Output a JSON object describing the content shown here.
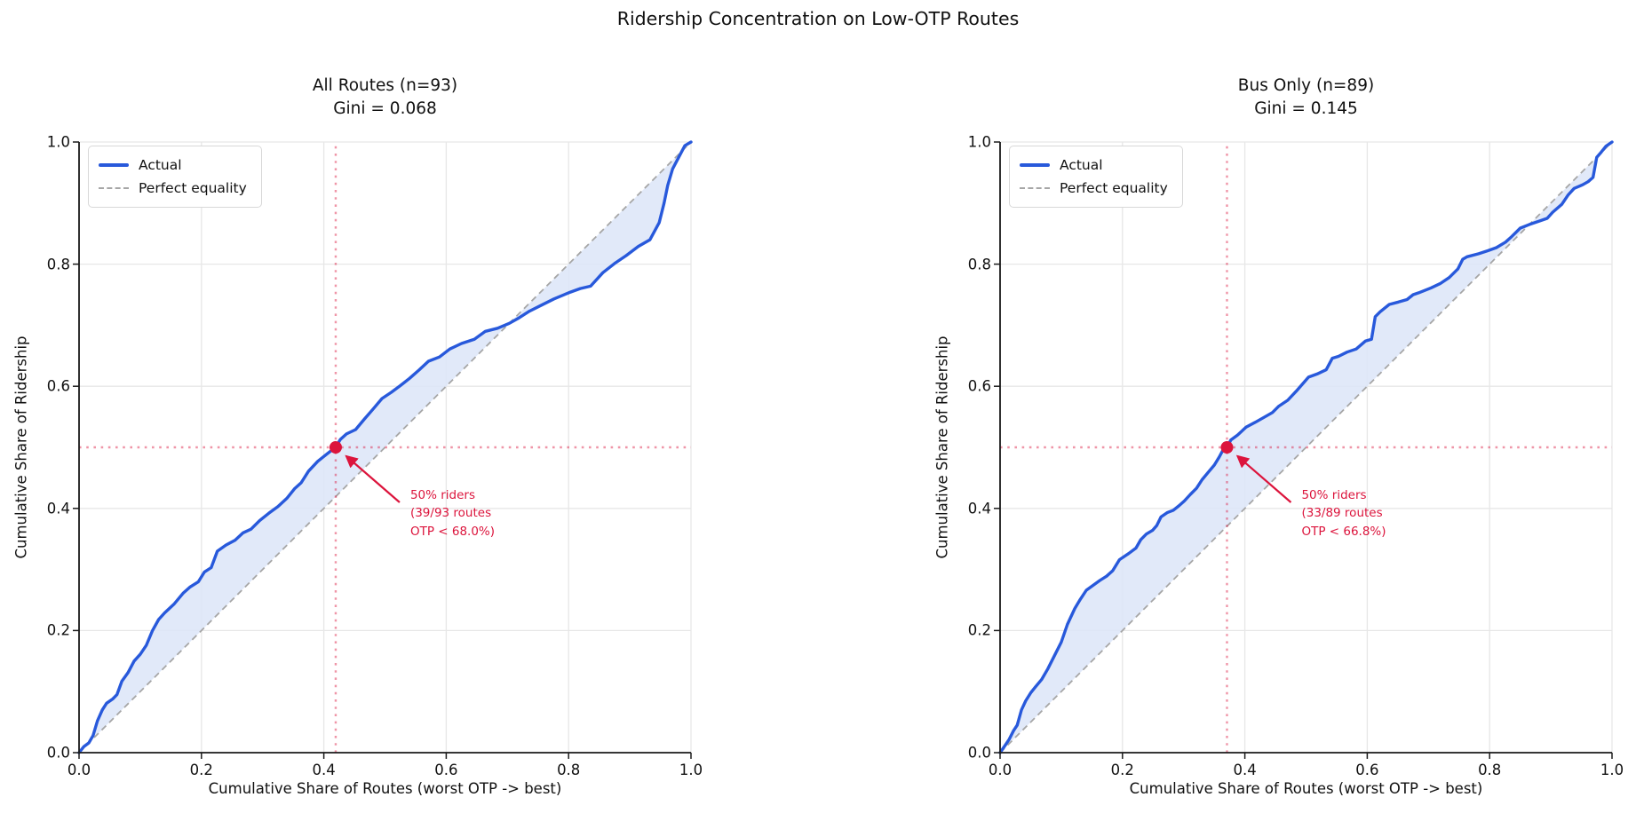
{
  "figure": {
    "title": "Ridership Concentration on Low-OTP Routes"
  },
  "colors": {
    "actual_line": "#2859DB",
    "lorenz_fill": "#DCE5F8",
    "equality_line": "#A6A6A6",
    "accent_crimson": "#DC143C",
    "grid": "#E7E7E7",
    "spine": "#1a1a1a"
  },
  "chart_data": [
    {
      "type": "line",
      "title": "All Routes (n=93)",
      "subtitle": "Gini = 0.068",
      "n_routes": 93,
      "gini": 0.068,
      "xlabel": "Cumulative Share of Routes (worst OTP -> best)",
      "ylabel": "Cumulative Share of Ridership",
      "xlim": [
        0,
        1
      ],
      "ylim": [
        0,
        1
      ],
      "grid": true,
      "legend_position": "upper left",
      "legend": [
        "Actual",
        "Perfect equality"
      ],
      "xticks": [
        0,
        0.2,
        0.4,
        0.6,
        0.8,
        1.0
      ],
      "yticks": [
        0,
        0.2,
        0.4,
        0.6,
        0.8,
        1.0
      ],
      "xtick_labels": [
        "0.0",
        "0.2",
        "0.4",
        "0.6",
        "0.8",
        "1.0"
      ],
      "ytick_labels": [
        "0.0",
        "0.2",
        "0.4",
        "0.6",
        "0.8",
        "1.0"
      ],
      "series": [
        {
          "name": "Actual",
          "points": [
            [
              0,
              0
            ],
            [
              0.008,
              0.01
            ],
            [
              0.016,
              0.016
            ],
            [
              0.023,
              0.028
            ],
            [
              0.03,
              0.052
            ],
            [
              0.038,
              0.07
            ],
            [
              0.045,
              0.081
            ],
            [
              0.055,
              0.088
            ],
            [
              0.062,
              0.095
            ],
            [
              0.07,
              0.117
            ],
            [
              0.08,
              0.131
            ],
            [
              0.09,
              0.15
            ],
            [
              0.1,
              0.161
            ],
            [
              0.11,
              0.176
            ],
            [
              0.12,
              0.2
            ],
            [
              0.13,
              0.218
            ],
            [
              0.14,
              0.229
            ],
            [
              0.155,
              0.243
            ],
            [
              0.17,
              0.261
            ],
            [
              0.181,
              0.271
            ],
            [
              0.195,
              0.28
            ],
            [
              0.205,
              0.296
            ],
            [
              0.216,
              0.303
            ],
            [
              0.226,
              0.33
            ],
            [
              0.24,
              0.34
            ],
            [
              0.255,
              0.348
            ],
            [
              0.268,
              0.36
            ],
            [
              0.281,
              0.366
            ],
            [
              0.295,
              0.38
            ],
            [
              0.31,
              0.392
            ],
            [
              0.325,
              0.403
            ],
            [
              0.34,
              0.417
            ],
            [
              0.352,
              0.432
            ],
            [
              0.363,
              0.442
            ],
            [
              0.375,
              0.461
            ],
            [
              0.39,
              0.477
            ],
            [
              0.405,
              0.489
            ],
            [
              0.419,
              0.5
            ],
            [
              0.427,
              0.513
            ],
            [
              0.437,
              0.522
            ],
            [
              0.452,
              0.529
            ],
            [
              0.466,
              0.546
            ],
            [
              0.48,
              0.562
            ],
            [
              0.495,
              0.58
            ],
            [
              0.51,
              0.59
            ],
            [
              0.525,
              0.601
            ],
            [
              0.54,
              0.613
            ],
            [
              0.556,
              0.627
            ],
            [
              0.571,
              0.641
            ],
            [
              0.589,
              0.648
            ],
            [
              0.606,
              0.661
            ],
            [
              0.625,
              0.67
            ],
            [
              0.646,
              0.677
            ],
            [
              0.664,
              0.69
            ],
            [
              0.684,
              0.695
            ],
            [
              0.703,
              0.703
            ],
            [
              0.719,
              0.712
            ],
            [
              0.736,
              0.723
            ],
            [
              0.756,
              0.733
            ],
            [
              0.776,
              0.743
            ],
            [
              0.8,
              0.753
            ],
            [
              0.819,
              0.76
            ],
            [
              0.836,
              0.764
            ],
            [
              0.856,
              0.786
            ],
            [
              0.875,
              0.801
            ],
            [
              0.894,
              0.814
            ],
            [
              0.914,
              0.829
            ],
            [
              0.933,
              0.84
            ],
            [
              0.948,
              0.868
            ],
            [
              0.956,
              0.9
            ],
            [
              0.962,
              0.929
            ],
            [
              0.97,
              0.956
            ],
            [
              0.98,
              0.975
            ],
            [
              0.99,
              0.994
            ],
            [
              1,
              1
            ]
          ]
        },
        {
          "name": "Perfect equality",
          "points": [
            [
              0,
              0
            ],
            [
              1,
              1
            ]
          ]
        }
      ],
      "crosshair": {
        "x": 0.4194,
        "y": 0.5
      },
      "marker_point": [
        0.4194,
        0.5
      ],
      "annotation": {
        "text": "50% riders\n(39/93 routes\nOTP < 68.0%)"
      }
    },
    {
      "type": "line",
      "title": "Bus Only (n=89)",
      "subtitle": "Gini = 0.145",
      "n_routes": 89,
      "gini": 0.145,
      "xlabel": "Cumulative Share of Routes (worst OTP -> best)",
      "ylabel": "Cumulative Share of Ridership",
      "xlim": [
        0,
        1
      ],
      "ylim": [
        0,
        1
      ],
      "grid": true,
      "legend_position": "upper left",
      "legend": [
        "Actual",
        "Perfect equality"
      ],
      "xticks": [
        0,
        0.2,
        0.4,
        0.6,
        0.8,
        1.0
      ],
      "yticks": [
        0,
        0.2,
        0.4,
        0.6,
        0.8,
        1.0
      ],
      "xtick_labels": [
        "0.0",
        "0.2",
        "0.4",
        "0.6",
        "0.8",
        "1.0"
      ],
      "ytick_labels": [
        "0.0",
        "0.2",
        "0.4",
        "0.6",
        "0.8",
        "1.0"
      ],
      "series": [
        {
          "name": "Actual",
          "points": [
            [
              0,
              0
            ],
            [
              0.007,
              0.01
            ],
            [
              0.015,
              0.022
            ],
            [
              0.022,
              0.036
            ],
            [
              0.028,
              0.045
            ],
            [
              0.035,
              0.07
            ],
            [
              0.042,
              0.085
            ],
            [
              0.05,
              0.098
            ],
            [
              0.058,
              0.108
            ],
            [
              0.068,
              0.12
            ],
            [
              0.078,
              0.137
            ],
            [
              0.09,
              0.161
            ],
            [
              0.1,
              0.181
            ],
            [
              0.11,
              0.21
            ],
            [
              0.122,
              0.236
            ],
            [
              0.131,
              0.251
            ],
            [
              0.141,
              0.266
            ],
            [
              0.152,
              0.274
            ],
            [
              0.163,
              0.282
            ],
            [
              0.174,
              0.289
            ],
            [
              0.184,
              0.298
            ],
            [
              0.195,
              0.316
            ],
            [
              0.21,
              0.326
            ],
            [
              0.222,
              0.335
            ],
            [
              0.23,
              0.349
            ],
            [
              0.239,
              0.358
            ],
            [
              0.249,
              0.364
            ],
            [
              0.256,
              0.372
            ],
            [
              0.263,
              0.386
            ],
            [
              0.273,
              0.393
            ],
            [
              0.283,
              0.397
            ],
            [
              0.292,
              0.404
            ],
            [
              0.301,
              0.412
            ],
            [
              0.311,
              0.423
            ],
            [
              0.321,
              0.433
            ],
            [
              0.33,
              0.447
            ],
            [
              0.34,
              0.459
            ],
            [
              0.35,
              0.471
            ],
            [
              0.358,
              0.484
            ],
            [
              0.365,
              0.497
            ],
            [
              0.371,
              0.5
            ],
            [
              0.377,
              0.512
            ],
            [
              0.388,
              0.52
            ],
            [
              0.402,
              0.533
            ],
            [
              0.417,
              0.541
            ],
            [
              0.431,
              0.549
            ],
            [
              0.445,
              0.557
            ],
            [
              0.455,
              0.567
            ],
            [
              0.47,
              0.577
            ],
            [
              0.484,
              0.592
            ],
            [
              0.504,
              0.615
            ],
            [
              0.518,
              0.62
            ],
            [
              0.533,
              0.627
            ],
            [
              0.543,
              0.646
            ],
            [
              0.553,
              0.649
            ],
            [
              0.567,
              0.656
            ],
            [
              0.582,
              0.661
            ],
            [
              0.597,
              0.674
            ],
            [
              0.607,
              0.677
            ],
            [
              0.613,
              0.714
            ],
            [
              0.621,
              0.722
            ],
            [
              0.636,
              0.734
            ],
            [
              0.651,
              0.738
            ],
            [
              0.665,
              0.742
            ],
            [
              0.675,
              0.75
            ],
            [
              0.684,
              0.753
            ],
            [
              0.704,
              0.761
            ],
            [
              0.719,
              0.768
            ],
            [
              0.734,
              0.778
            ],
            [
              0.748,
              0.792
            ],
            [
              0.756,
              0.808
            ],
            [
              0.763,
              0.812
            ],
            [
              0.782,
              0.817
            ],
            [
              0.797,
              0.822
            ],
            [
              0.811,
              0.827
            ],
            [
              0.826,
              0.836
            ],
            [
              0.836,
              0.845
            ],
            [
              0.85,
              0.859
            ],
            [
              0.865,
              0.865
            ],
            [
              0.88,
              0.87
            ],
            [
              0.894,
              0.875
            ],
            [
              0.903,
              0.885
            ],
            [
              0.918,
              0.898
            ],
            [
              0.928,
              0.913
            ],
            [
              0.938,
              0.924
            ],
            [
              0.952,
              0.93
            ],
            [
              0.961,
              0.935
            ],
            [
              0.969,
              0.942
            ],
            [
              0.975,
              0.975
            ],
            [
              0.982,
              0.983
            ],
            [
              0.99,
              0.993
            ],
            [
              1,
              1
            ]
          ]
        },
        {
          "name": "Perfect equality",
          "points": [
            [
              0,
              0
            ],
            [
              1,
              1
            ]
          ]
        }
      ],
      "crosshair": {
        "x": 0.3708,
        "y": 0.5
      },
      "marker_point": [
        0.3708,
        0.5
      ],
      "annotation": {
        "text": "50% riders\n(33/89 routes\nOTP < 66.8%)"
      }
    }
  ]
}
